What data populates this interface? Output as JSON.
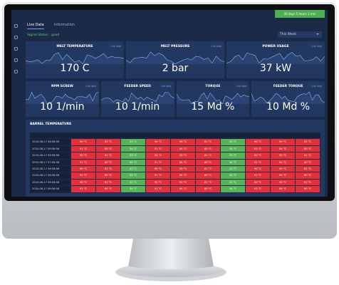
{
  "tabs": [
    "Live Data",
    "Information"
  ],
  "uptime": "30 days 5 hours 3 min",
  "signal_status": "Signal Status : good",
  "period": "This Week",
  "cards": [
    {
      "title": "MELT TEMPERATURE",
      "link": "Live data",
      "value": "170 C"
    },
    {
      "title": "MELT PRESSURE",
      "link": "Live data",
      "value": "2 bar"
    },
    {
      "title": "POWER USAGE",
      "link": "Live data",
      "value": "37 kW"
    },
    {
      "title": "RPM SCREW",
      "link": "Live data",
      "value": "10 1/min"
    },
    {
      "title": "FEEDER SPEED",
      "link": "Live data",
      "value": "10 1/min"
    },
    {
      "title": "TORQUE",
      "link": "Live data",
      "value": "15 Md %"
    },
    {
      "title": "FEEDER TORQUE",
      "link": "Live data",
      "value": "10 Md %"
    }
  ],
  "barrel": {
    "title": "BARREL TEMPERATURE",
    "column_colors": [
      "#e3303b",
      "#e3303b",
      "#55b35a",
      "#e3303b",
      "#e3303b",
      "#e3303b",
      "#55b35a",
      "#e3303b",
      "#e3303b",
      "#e3303b"
    ],
    "rows": [
      {
        "time": "2020-08-17 06:56:56",
        "cells": [
          "90 °C",
          "81 °C",
          "33 °C",
          "90 °C",
          "90 °C",
          "81 °C",
          "33 °C",
          "90 °C",
          "90 °C",
          "81 °C"
        ]
      },
      {
        "time": "2020-08-17 06:56:56",
        "cells": [
          "91 °C",
          "80 °C",
          "34 °C",
          "91 °C",
          "84 °C",
          "80 °C",
          "34 °C",
          "91 °C",
          "84 °C",
          "80 °C"
        ]
      },
      {
        "time": "2020-08-17 06:56:56",
        "cells": [
          "90 °C",
          "81 °C",
          "33 °C",
          "90 °C",
          "90 °C",
          "81 °C",
          "33 °C",
          "90 °C",
          "90 °C",
          "81 °C"
        ]
      },
      {
        "time": "2020-08-17 07:06:56",
        "cells": [
          "91 °C",
          "80 °C",
          "34 °C",
          "91 °C",
          "84 °C",
          "80 °C",
          "34 °C",
          "91 °C",
          "84 °C",
          "80 °C"
        ]
      },
      {
        "time": "2020-08-17 06:56:56",
        "cells": [
          "90 °C",
          "81 °C",
          "33 °C",
          "90 °C",
          "90 °C",
          "81 °C",
          "33 °C",
          "90 °C",
          "90 °C",
          "81 °C"
        ]
      },
      {
        "time": "2020-08-17 06:56:56",
        "cells": [
          "91 °C",
          "80 °C",
          "34 °C",
          "91 °C",
          "84 °C",
          "80 °C",
          "34 °C",
          "91 °C",
          "84 °C",
          "80 °C"
        ]
      },
      {
        "time": "2020-08-17 06:56:56",
        "cells": [
          "90 °C",
          "81 °C",
          "33 °C",
          "90 °C",
          "90 °C",
          "81 °C",
          "33 °C",
          "90 °C",
          "90 °C",
          "81 °C"
        ]
      },
      {
        "time": "2020-08-17 06:56:56",
        "cells": [
          "91 °C",
          "80 °C",
          "34 °C",
          "91 °C",
          "84 °C",
          "80 °C",
          "34 °C",
          "91 °C",
          "84 °C",
          "80 °C"
        ]
      }
    ]
  }
}
